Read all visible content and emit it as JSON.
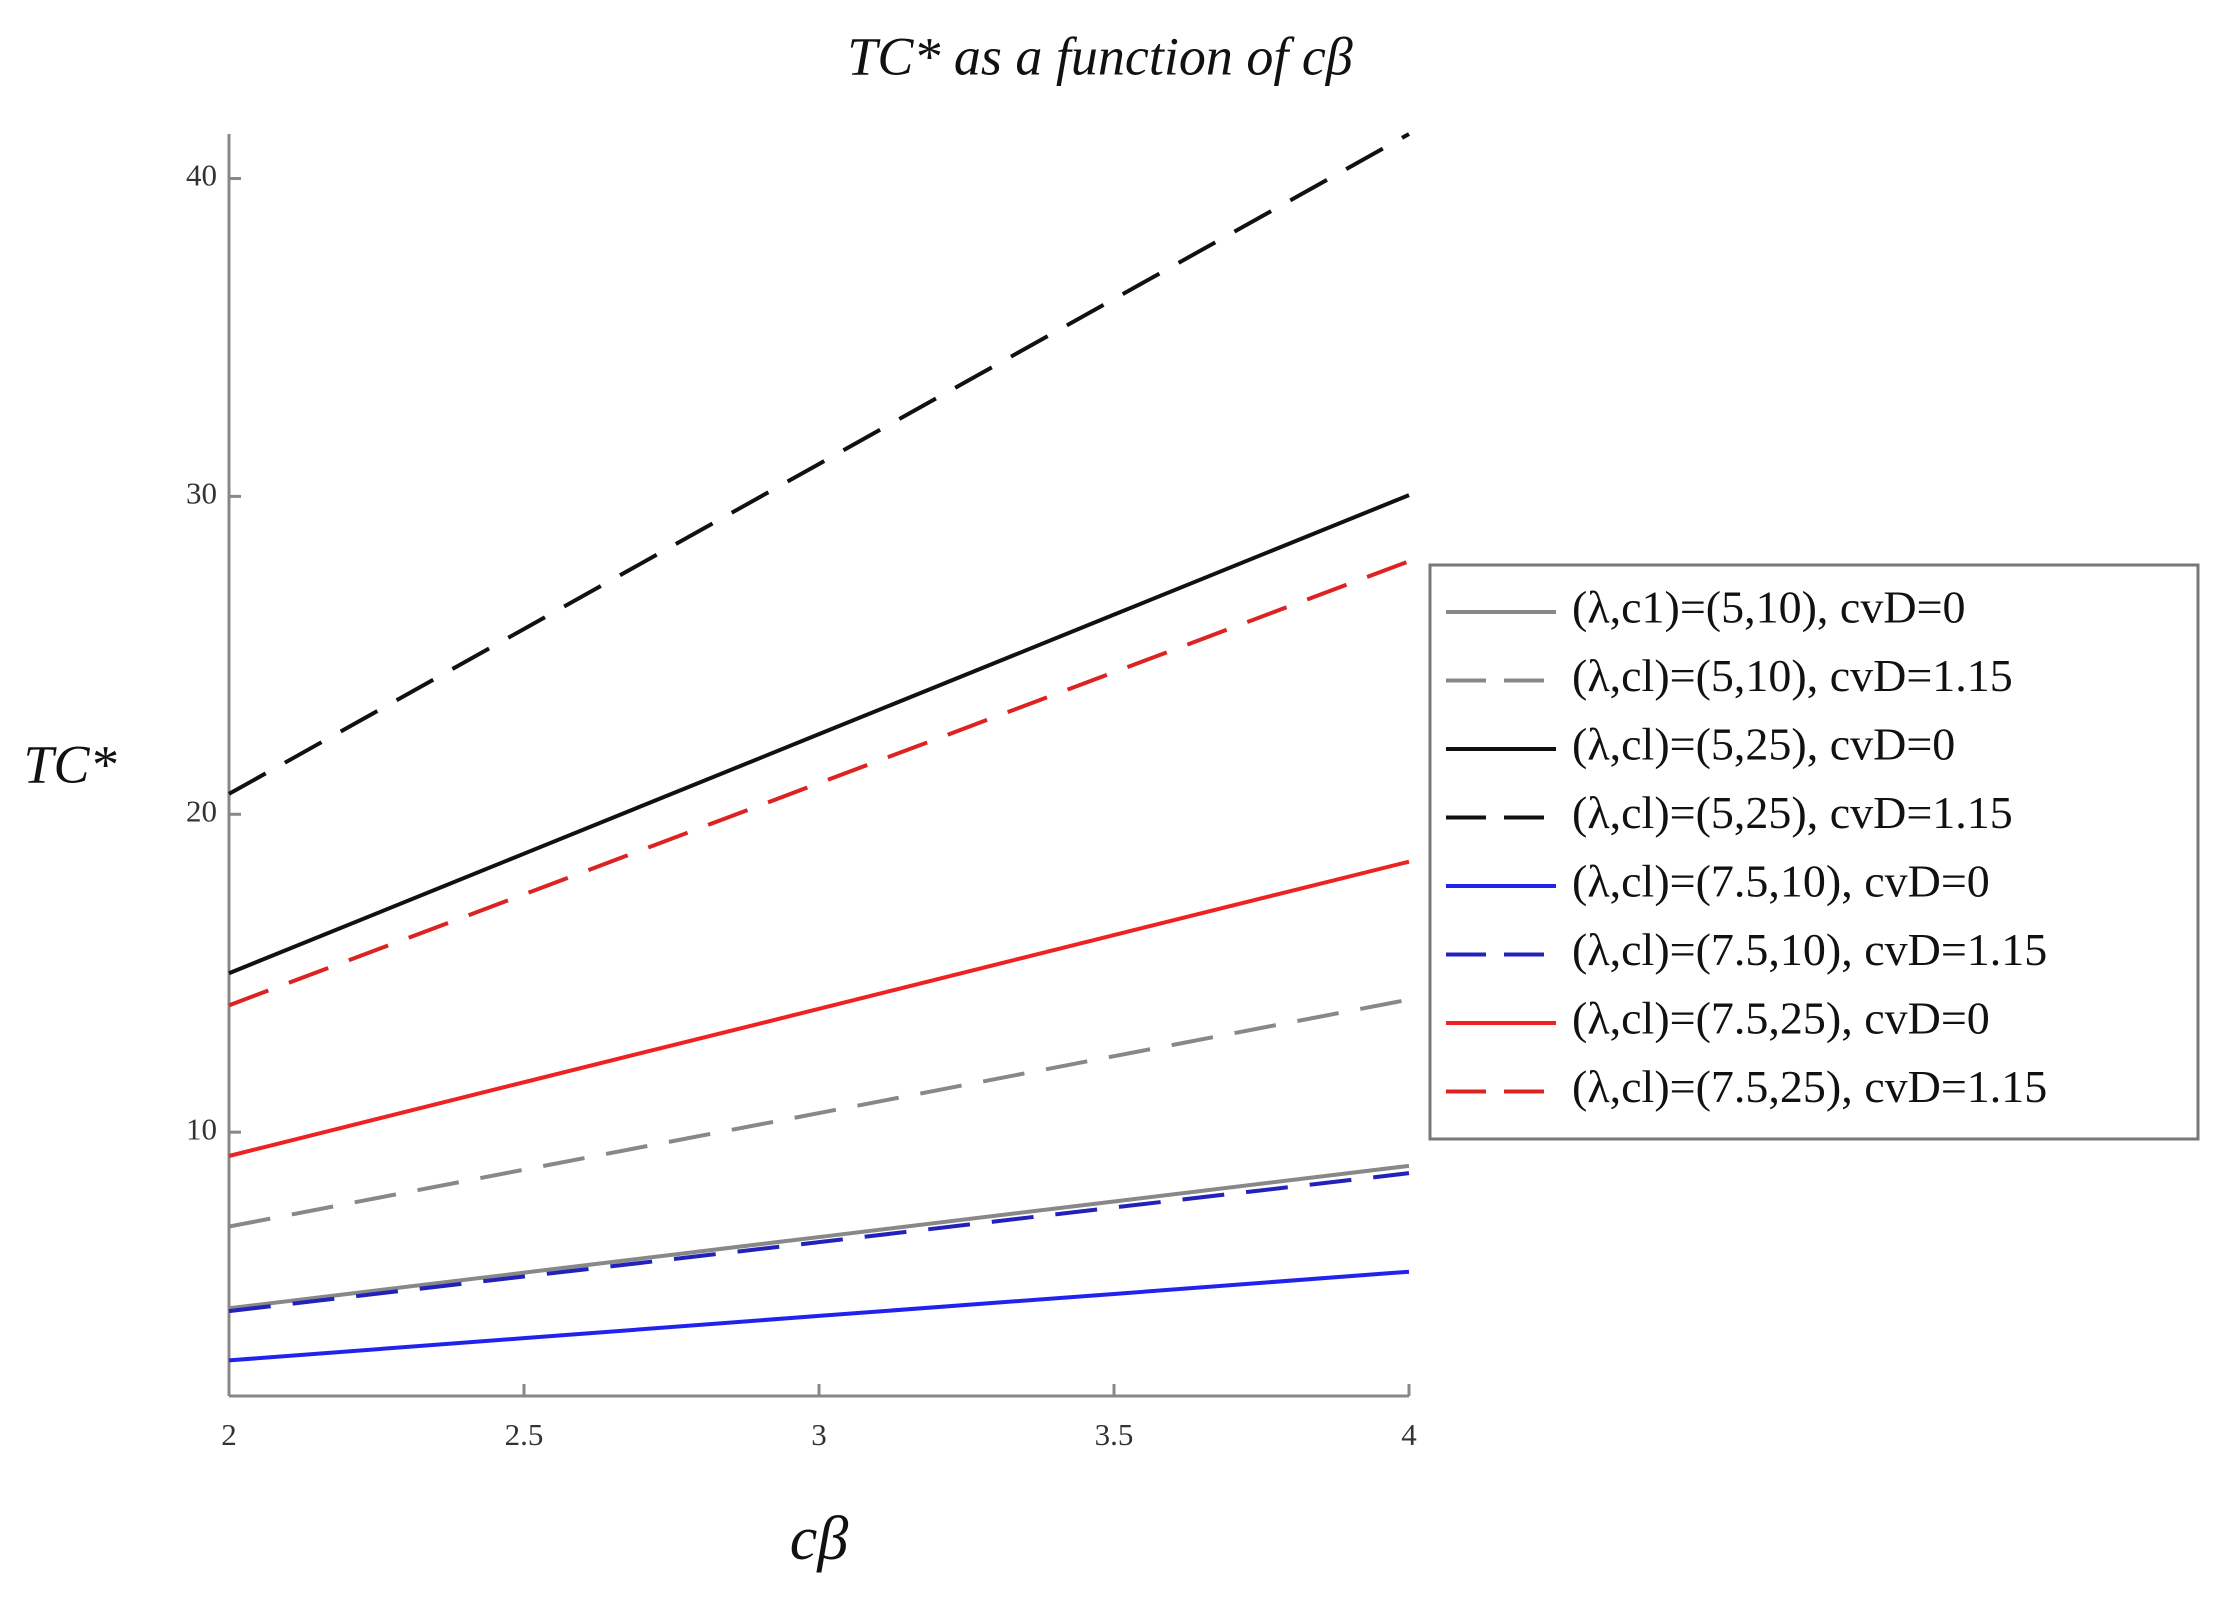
{
  "chart_data": {
    "type": "line",
    "title": "TC* as a function of cβ",
    "x_label": "cβ",
    "y_label": "TC*",
    "x": [
      2,
      2.5,
      3,
      3.5,
      4
    ],
    "xlim": [
      2,
      4
    ],
    "xticks": [
      2,
      2.5,
      3,
      3.5,
      4
    ],
    "ylim": [
      1.7,
      41.4
    ],
    "yticks": [
      10,
      20,
      30,
      40
    ],
    "legend": "right",
    "series": [
      {
        "name": "(λ,c1)=(5,10), cvD=0",
        "color": "#888888",
        "dash": "solid",
        "values": [
          4.46,
          5.58,
          6.7,
          7.82,
          8.94
        ]
      },
      {
        "name": "(λ,cl)=(5,10), cvD=1.15",
        "color": "#888888",
        "dash": "dashed",
        "values": [
          7.03,
          8.82,
          10.6,
          12.39,
          14.17
        ]
      },
      {
        "name": "(λ,cl)=(5,25), cvD=0",
        "color": "#111111",
        "dash": "solid",
        "values": [
          15.0,
          18.76,
          22.52,
          26.28,
          30.04
        ]
      },
      {
        "name": "(λ,cl)=(5,25), cvD=1.15",
        "color": "#111111",
        "dash": "dashed",
        "values": [
          20.64,
          25.83,
          31.02,
          36.21,
          41.4
        ]
      },
      {
        "name": "(λ,cl)=(7.5,10), cvD=0",
        "color": "#2222ee",
        "dash": "solid",
        "values": [
          2.82,
          3.52,
          4.22,
          4.91,
          5.61
        ]
      },
      {
        "name": "(λ,cl)=(7.5,10), cvD=1.15",
        "color": "#2222bb",
        "dash": "dashed",
        "values": [
          4.37,
          5.46,
          6.54,
          7.63,
          8.71
        ]
      },
      {
        "name": "(λ,cl)=(7.5,25), cvD=0",
        "color": "#ee2222",
        "dash": "solid",
        "values": [
          9.25,
          11.57,
          13.88,
          16.2,
          18.51
        ]
      },
      {
        "name": "(λ,cl)=(7.5,25), cvD=1.15",
        "color": "#dd2222",
        "dash": "dashed",
        "values": [
          13.99,
          17.48,
          20.98,
          24.47,
          27.96
        ]
      }
    ]
  }
}
